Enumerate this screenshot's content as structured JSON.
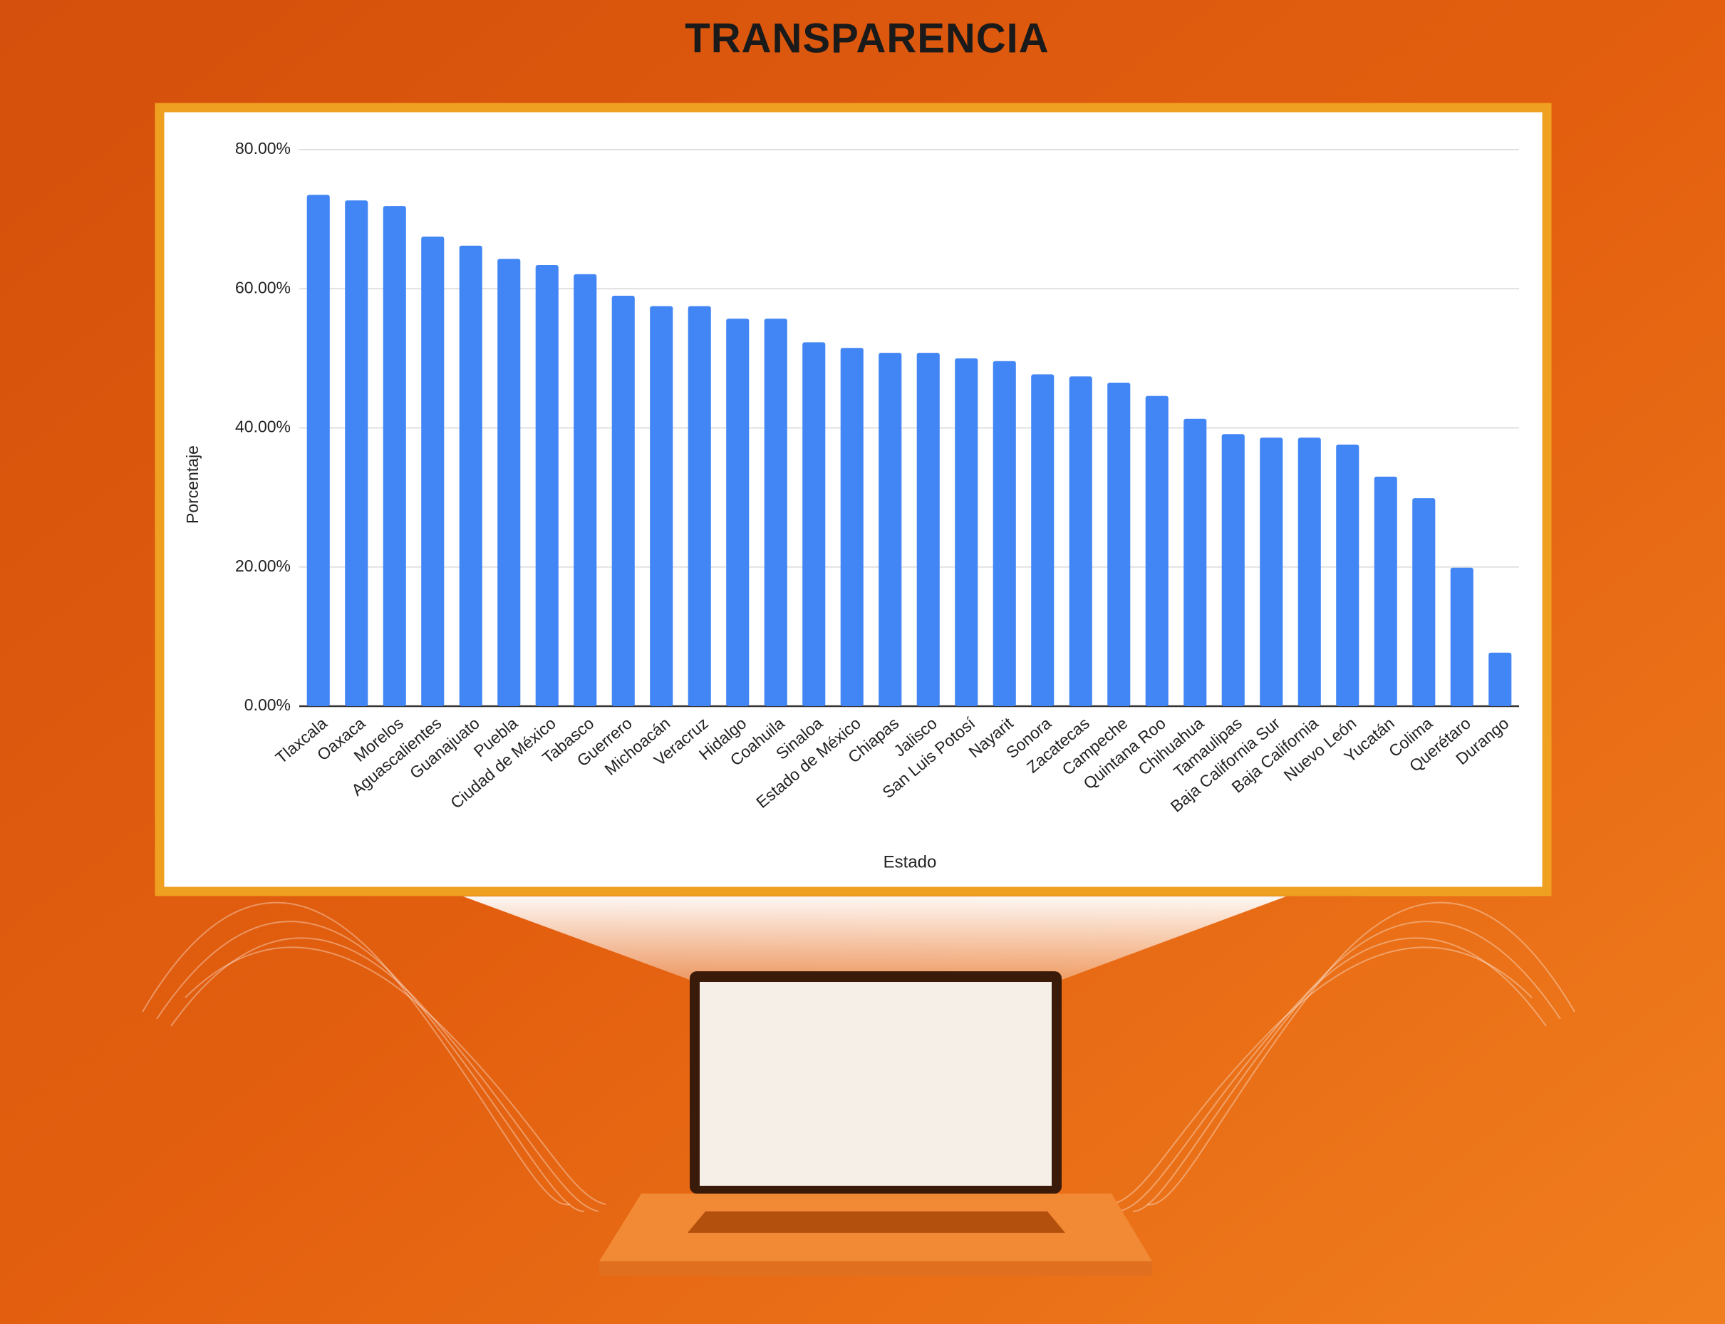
{
  "chart_data": {
    "type": "bar",
    "title": "TRANSPARENCIA",
    "x_label": "Estado",
    "y_label": "Porcentaje",
    "categories": [
      "Tlaxcala",
      "Oaxaca",
      "Morelos",
      "Aguascalientes",
      "Guanajuato",
      "Puebla",
      "Ciudad de México",
      "Tabasco",
      "Guerrero",
      "Michoacán",
      "Veracruz",
      "Hidalgo",
      "Coahuila",
      "Sinaloa",
      "Estado de México",
      "Chiapas",
      "Jalisco",
      "San Luis Potosí",
      "Nayarit",
      "Sonora",
      "Zacatecas",
      "Campeche",
      "Quintana Roo",
      "Chihuahua",
      "Tamaulipas",
      "Baja California Sur",
      "Baja California",
      "Nuevo León",
      "Yucatán",
      "Colima",
      "Querétaro",
      "Durango"
    ],
    "values": [
      73.5,
      72.7,
      71.9,
      67.5,
      66.2,
      64.3,
      63.4,
      62.1,
      59.0,
      57.5,
      57.5,
      55.7,
      55.7,
      52.3,
      51.5,
      50.8,
      50.8,
      50.0,
      49.6,
      47.7,
      47.4,
      46.5,
      44.6,
      41.3,
      39.1,
      38.6,
      38.6,
      37.6,
      33.0,
      29.9,
      19.9,
      7.7
    ],
    "color": "#4285f4",
    "ylim": [
      0,
      80
    ],
    "yticks": [
      {
        "value": 0,
        "label": "0.00%"
      },
      {
        "value": 20,
        "label": "20.00%"
      },
      {
        "value": 40,
        "label": "40.00%"
      },
      {
        "value": 60,
        "label": "60.00%"
      },
      {
        "value": 80,
        "label": "80.00%"
      }
    ],
    "grid": true
  }
}
